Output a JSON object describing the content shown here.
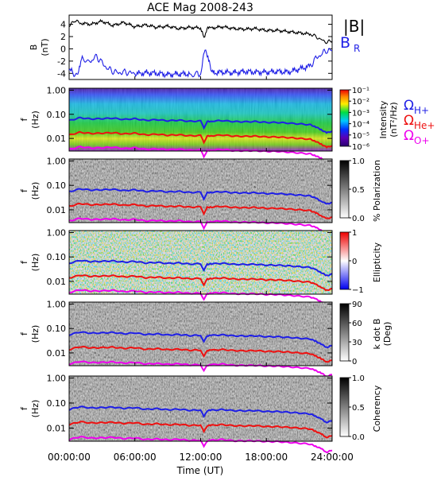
{
  "title": "ACE Mag 2008-243",
  "xlabel": "Time (UT)",
  "colors": {
    "bmag": "#000000",
    "br": "#1f1fe6",
    "oh": "#1f1fe6",
    "ohe": "#ee1111",
    "oo": "#ee00ee"
  },
  "chart_data": [
    {
      "type": "line",
      "panel": "field",
      "ylabel_lines": [
        "B",
        "(nT)"
      ],
      "yticks": [
        "4",
        "2",
        "0",
        "-2",
        "-4"
      ],
      "ylim": [
        -5,
        5.5
      ],
      "xlim": [
        0,
        24
      ],
      "series": [
        {
          "name": "|B|",
          "label_color": "#000000",
          "x": [
            0,
            0.5,
            1,
            2,
            3,
            4,
            5,
            6,
            7,
            8,
            9,
            10,
            11,
            12,
            12.3,
            12.6,
            13,
            14,
            15,
            16,
            17,
            18,
            19,
            20,
            21,
            22,
            22.5,
            23,
            23.5,
            24
          ],
          "y": [
            3.6,
            4.7,
            4.2,
            4.0,
            4.5,
            3.8,
            4.3,
            3.6,
            3.9,
            3.5,
            3.7,
            3.3,
            3.5,
            3.4,
            1.8,
            3.3,
            3.4,
            3.6,
            3.3,
            3.2,
            3.3,
            3.0,
            3.0,
            2.8,
            2.6,
            2.4,
            2.0,
            1.5,
            1.1,
            1.3
          ]
        },
        {
          "name": "B",
          "subscript": "R",
          "label_color": "#1f1fe6",
          "x": [
            0,
            0.3,
            0.8,
            1.2,
            2,
            2.5,
            3,
            3.5,
            4,
            4.5,
            5,
            5.5,
            6,
            7,
            8,
            9,
            10,
            11,
            11.8,
            12,
            12.2,
            12.4,
            12.8,
            13,
            14,
            15,
            16,
            17,
            18,
            19,
            20,
            21,
            22,
            22.5,
            23,
            23.5,
            24
          ],
          "y": [
            -3.2,
            -3.9,
            -4.3,
            -1.5,
            -2.1,
            -1.2,
            -2.3,
            -3.2,
            -3.6,
            -3.9,
            -3.8,
            -3.9,
            -4.1,
            -3.9,
            -4.0,
            -4.2,
            -4.1,
            -4.1,
            -4.2,
            -4.2,
            -1.5,
            0.3,
            -2.2,
            -3.9,
            -3.8,
            -3.9,
            -3.7,
            -3.8,
            -3.8,
            -3.7,
            -3.8,
            -3.3,
            -2.8,
            -1.6,
            -0.9,
            -0.2,
            -0.3
          ]
        }
      ]
    },
    {
      "type": "heatmap",
      "panel": "intensity",
      "ylabel_lines": [
        "f",
        "(Hz)"
      ],
      "yticks": [
        "1.00",
        "0.10",
        "0.01"
      ],
      "ylim": [
        0.003,
        1.2
      ],
      "colorbar_label_lines": [
        "Intensity",
        "(nT²/Hz)"
      ],
      "colorbar_ticks": [
        "10⁻¹",
        "10⁻²",
        "10⁻³",
        "10⁻⁴",
        "10⁻⁵",
        "10⁻⁶"
      ],
      "gyro_labels": [
        {
          "base": "Ω",
          "sub": "H+",
          "color": "#1f1fe6"
        },
        {
          "base": "Ω",
          "sub": "He+",
          "color": "#ee1111"
        },
        {
          "base": "Ω",
          "sub": "O+",
          "color": "#ee00ee"
        }
      ]
    },
    {
      "type": "heatmap",
      "panel": "polarization",
      "ylabel_lines": [
        "f",
        "(Hz)"
      ],
      "yticks": [
        "1.00",
        "0.10",
        "0.01"
      ],
      "colorbar_label_lines": [
        "% Polarization"
      ],
      "colorbar_ticks": [
        "1.0",
        "0.5",
        "0.0"
      ]
    },
    {
      "type": "heatmap",
      "panel": "ellipticity",
      "ylabel_lines": [
        "f",
        "(Hz)"
      ],
      "yticks": [
        "1.00",
        "0.10",
        "0.01"
      ],
      "colorbar_label_lines": [
        "Ellipticity"
      ],
      "colorbar_ticks": [
        "1",
        "0",
        "−1"
      ]
    },
    {
      "type": "heatmap",
      "panel": "kdotb",
      "ylabel_lines": [
        "f",
        "(Hz)"
      ],
      "yticks": [
        "1.00",
        "0.10",
        "0.01"
      ],
      "colorbar_label_lines": [
        "k dot B",
        "(Deg)"
      ],
      "colorbar_ticks": [
        "90",
        "60",
        "30",
        "0"
      ]
    },
    {
      "type": "heatmap",
      "panel": "coherency",
      "ylabel_lines": [
        "f",
        "(Hz)"
      ],
      "yticks": [
        "1.00",
        "0.10",
        "0.01"
      ],
      "colorbar_label_lines": [
        "Coherency"
      ],
      "colorbar_ticks": [
        "1.0",
        "0.5",
        "0.0"
      ]
    }
  ],
  "gyrofrequencies": {
    "x": [
      0,
      1,
      2,
      3,
      4,
      5,
      6,
      7,
      8,
      9,
      10,
      11,
      12,
      12.3,
      12.6,
      13,
      14,
      15,
      16,
      17,
      18,
      19,
      20,
      21,
      22,
      22.5,
      23,
      23.5,
      24
    ],
    "H": [
      0.055,
      0.072,
      0.064,
      0.066,
      0.069,
      0.061,
      0.066,
      0.056,
      0.06,
      0.054,
      0.057,
      0.051,
      0.053,
      0.028,
      0.05,
      0.052,
      0.055,
      0.05,
      0.049,
      0.05,
      0.046,
      0.046,
      0.043,
      0.04,
      0.037,
      0.03,
      0.023,
      0.017,
      0.02
    ],
    "He": [
      0.0138,
      0.018,
      0.016,
      0.0165,
      0.0172,
      0.0153,
      0.0165,
      0.014,
      0.015,
      0.0135,
      0.0142,
      0.0128,
      0.0132,
      0.007,
      0.0125,
      0.013,
      0.0138,
      0.0125,
      0.0122,
      0.0125,
      0.0115,
      0.0115,
      0.0108,
      0.01,
      0.0093,
      0.0075,
      0.0058,
      0.0043,
      0.005
    ],
    "O": [
      0.0035,
      0.0045,
      0.004,
      0.0041,
      0.0043,
      0.0038,
      0.0041,
      0.0035,
      0.0037,
      0.0034,
      0.0036,
      0.0032,
      0.0033,
      0.0018,
      0.0031,
      0.0033,
      0.0035,
      0.0031,
      0.0031,
      0.0031,
      0.0029,
      0.0029,
      0.0027,
      0.0025,
      0.0023,
      0.0019,
      0.0015,
      0.0011,
      0.0013
    ]
  },
  "xticks": [
    "00:00:00",
    "06:00:00",
    "12:00:00",
    "18:00:00",
    "24:00:00"
  ],
  "xtick_values": [
    0,
    6,
    12,
    18,
    24
  ]
}
